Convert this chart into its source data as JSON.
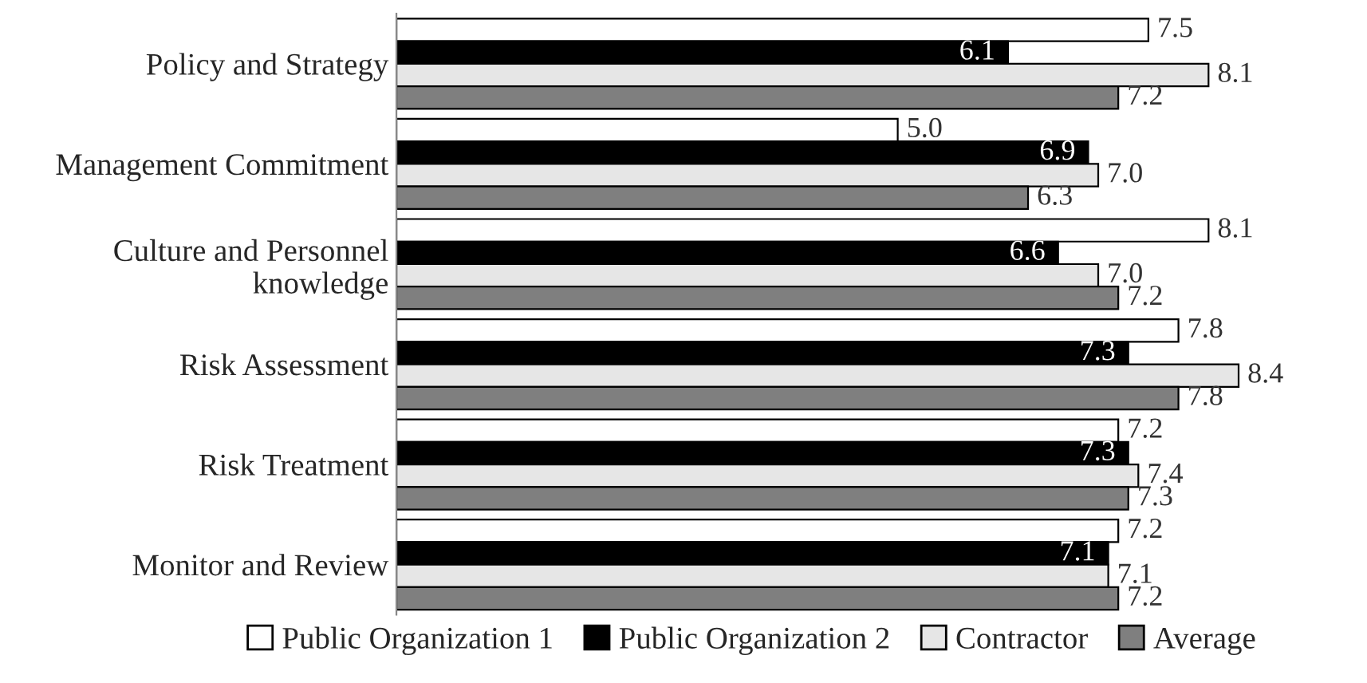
{
  "chart_data": {
    "type": "bar",
    "orientation": "horizontal",
    "legend": "bottom",
    "grid": false,
    "categories": [
      "Policy and Strategy",
      "Management Commitment",
      "Culture and Personnel knowledge",
      "Risk Assessment",
      "Risk Treatment",
      "Monitor and Review"
    ],
    "series": [
      {
        "name": "Public Organization 1",
        "color": "#ffffff",
        "values": [
          7.5,
          5.0,
          8.1,
          7.8,
          7.2,
          7.2
        ],
        "value_labels": [
          "7.5",
          "5.0",
          "8.1",
          "7.8",
          "7.2",
          "7.2"
        ]
      },
      {
        "name": "Public Organization 2",
        "color": "#000000",
        "values": [
          6.1,
          6.9,
          6.6,
          7.3,
          7.3,
          7.1
        ],
        "value_labels": [
          "6.1",
          "6.9",
          "6.6",
          "7.3",
          "7.3",
          "7.1"
        ]
      },
      {
        "name": "Contractor",
        "color": "#e6e6e6",
        "values": [
          8.1,
          7.0,
          7.0,
          8.4,
          7.4,
          7.1
        ],
        "value_labels": [
          "8.1",
          "7.0",
          "7.0",
          "8.4",
          "7.4",
          "7.1"
        ]
      },
      {
        "name": "Average",
        "color": "#7f7f7f",
        "values": [
          7.2,
          6.3,
          7.2,
          7.8,
          7.3,
          7.2
        ],
        "value_labels": [
          "7.2",
          "6.3",
          "7.2",
          "7.8",
          "7.3",
          "7.2"
        ]
      }
    ]
  }
}
